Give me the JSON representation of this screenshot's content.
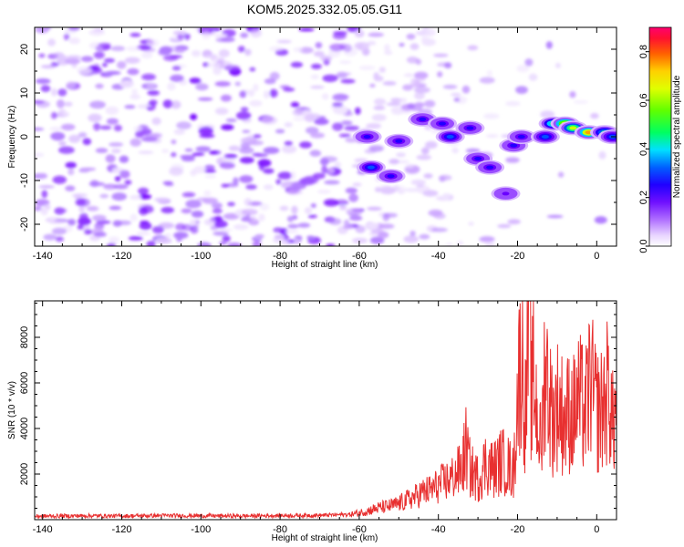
{
  "chart_data": [
    {
      "type": "heatmap",
      "title": "KOM5.2025.332.05.05.G11",
      "xlabel": "Height of straight line (km)",
      "ylabel": "Frequency (Hz)",
      "xlim": [
        -142,
        5
      ],
      "ylim": [
        -25,
        25
      ],
      "x_ticks": [
        -140,
        -120,
        -100,
        -80,
        -60,
        -40,
        -20,
        0
      ],
      "y_ticks": [
        -20,
        -10,
        0,
        10,
        20
      ],
      "colorbar": {
        "label": "Normalized spectral amplitude",
        "range": [
          0,
          0.9
        ],
        "ticks": [
          0.0,
          0.2,
          0.4,
          0.6,
          0.8
        ],
        "colors": [
          "#ffffff",
          "#d9b3ff",
          "#9a4dff",
          "#6a00ff",
          "#2000ff",
          "#0050ff",
          "#00c8ff",
          "#00ff80",
          "#40ff00",
          "#c8ff00",
          "#ffff00",
          "#ffa000",
          "#ff3000",
          "#ff0060"
        ]
      },
      "hotspots": [
        {
          "x": -57,
          "y": -7,
          "amp": 0.35
        },
        {
          "x": -52,
          "y": -9,
          "amp": 0.25
        },
        {
          "x": -58,
          "y": 0,
          "amp": 0.3
        },
        {
          "x": -50,
          "y": -1,
          "amp": 0.25
        },
        {
          "x": -44,
          "y": 4,
          "amp": 0.3
        },
        {
          "x": -39,
          "y": 3,
          "amp": 0.25
        },
        {
          "x": -37,
          "y": 0,
          "amp": 0.35
        },
        {
          "x": -32,
          "y": 2,
          "amp": 0.3
        },
        {
          "x": -30,
          "y": -5,
          "amp": 0.3
        },
        {
          "x": -27,
          "y": -7,
          "amp": 0.25
        },
        {
          "x": -23,
          "y": -13,
          "amp": 0.2
        },
        {
          "x": -21,
          "y": -2,
          "amp": 0.3
        },
        {
          "x": -19,
          "y": 0,
          "amp": 0.28
        },
        {
          "x": -13,
          "y": 0,
          "amp": 0.35
        },
        {
          "x": -11,
          "y": 3,
          "amp": 0.5
        },
        {
          "x": -8,
          "y": 3,
          "amp": 0.7
        },
        {
          "x": -6,
          "y": 2,
          "amp": 0.6
        },
        {
          "x": -2,
          "y": 1,
          "amp": 0.75
        },
        {
          "x": 2,
          "y": 1,
          "amp": 0.45
        },
        {
          "x": 4,
          "y": 0,
          "amp": 0.35
        }
      ]
    },
    {
      "type": "line",
      "xlabel": "Height of straight line (km)",
      "ylabel": "SNR (10 * v/v)",
      "xlim": [
        -142,
        5
      ],
      "ylim": [
        0,
        9600
      ],
      "x_ticks": [
        -140,
        -120,
        -100,
        -80,
        -60,
        -40,
        -20,
        0
      ],
      "y_ticks": [
        2000,
        4000,
        6000,
        8000
      ],
      "color": "#e83030",
      "series": [
        {
          "name": "SNR",
          "x": [
            -142,
            -130,
            -120,
            -110,
            -100,
            -90,
            -80,
            -70,
            -62,
            -58,
            -55,
            -52,
            -50,
            -48,
            -46,
            -44,
            -42,
            -40,
            -38,
            -36,
            -34,
            -33,
            -32,
            -30,
            -28,
            -26,
            -24,
            -22,
            -21,
            -20,
            -19,
            -18,
            -17,
            -16.5,
            -16,
            -15,
            -14,
            -13,
            -12,
            -11,
            -10,
            -9,
            -8,
            -7,
            -6,
            -5,
            -4,
            -3,
            -2.5,
            -2,
            -1.5,
            -1,
            0,
            1,
            2,
            3,
            3.5,
            4,
            5
          ],
          "values": [
            150,
            170,
            160,
            180,
            170,
            160,
            180,
            190,
            230,
            380,
            520,
            600,
            700,
            850,
            1000,
            1200,
            1300,
            1500,
            1700,
            1900,
            2300,
            3200,
            2200,
            1800,
            2500,
            2200,
            2600,
            2300,
            2000,
            5500,
            7400,
            4500,
            9500,
            5000,
            6200,
            4600,
            3000,
            7200,
            5300,
            4400,
            5100,
            4800,
            4300,
            4800,
            4500,
            5200,
            5100,
            4700,
            5000,
            5700,
            6300,
            5500,
            4800,
            4700,
            5200,
            5800,
            5200,
            4100,
            5100
          ]
        }
      ]
    }
  ]
}
